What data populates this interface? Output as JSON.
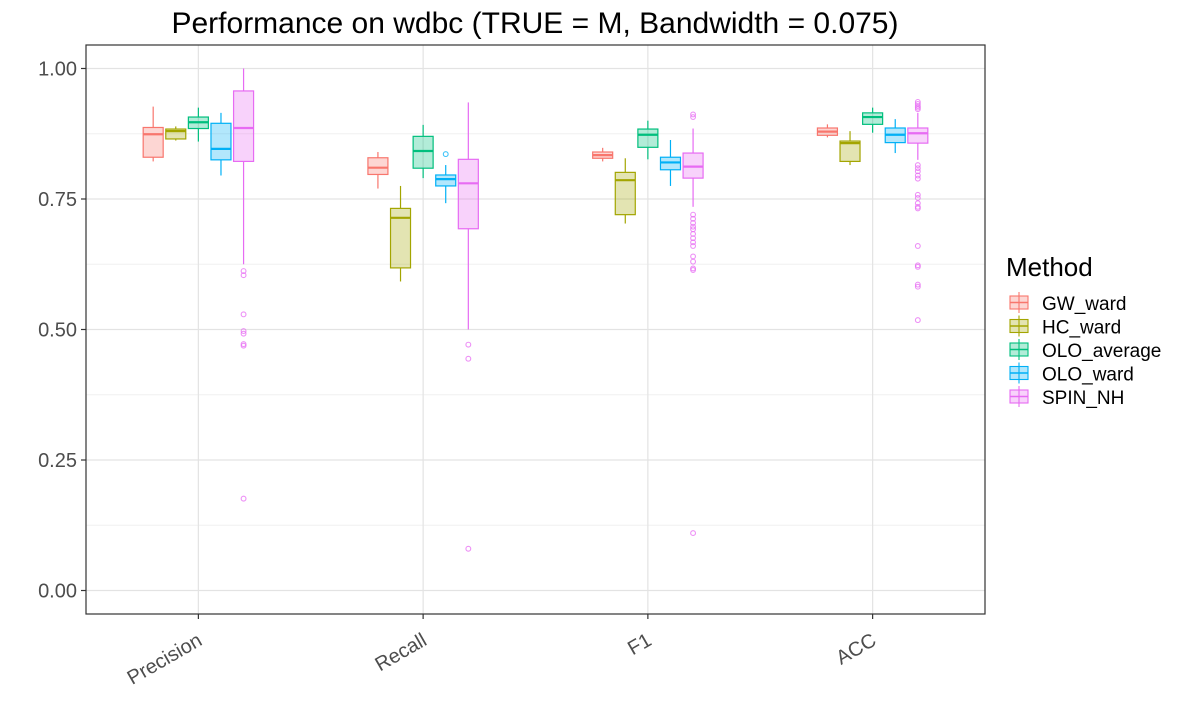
{
  "chart_data": {
    "type": "boxplot",
    "title": "Performance on wdbc (TRUE = M, Bandwidth = 0.075)",
    "xlabel": "",
    "ylabel": "",
    "categories": [
      "Precision",
      "Recall",
      "F1",
      "ACC"
    ],
    "ylim": [
      -0.045,
      1.045
    ],
    "yticks": [
      0.0,
      0.25,
      0.5,
      0.75,
      1.0
    ],
    "ytick_labels": [
      "0.00",
      "0.25",
      "0.50",
      "0.75",
      "1.00"
    ],
    "grid": true,
    "legend": {
      "title": "Method",
      "position": "right"
    },
    "series": [
      {
        "name": "GW_ward",
        "color": "#F8766D",
        "boxes": [
          {
            "category": "Precision",
            "whisker_low": 0.822,
            "q1": 0.83,
            "median": 0.874,
            "q3": 0.887,
            "whisker_high": 0.927,
            "outliers": []
          },
          {
            "category": "Recall",
            "whisker_low": 0.77,
            "q1": 0.797,
            "median": 0.81,
            "q3": 0.829,
            "whisker_high": 0.84,
            "outliers": []
          },
          {
            "category": "F1",
            "whisker_low": 0.822,
            "q1": 0.828,
            "median": 0.834,
            "q3": 0.84,
            "whisker_high": 0.848,
            "outliers": []
          },
          {
            "category": "ACC",
            "whisker_low": 0.868,
            "q1": 0.872,
            "median": 0.879,
            "q3": 0.886,
            "whisker_high": 0.893,
            "outliers": []
          }
        ]
      },
      {
        "name": "HC_ward",
        "color": "#A3A500",
        "boxes": [
          {
            "category": "Precision",
            "whisker_low": 0.862,
            "q1": 0.865,
            "median": 0.88,
            "q3": 0.884,
            "whisker_high": 0.889,
            "outliers": []
          },
          {
            "category": "Recall",
            "whisker_low": 0.592,
            "q1": 0.618,
            "median": 0.714,
            "q3": 0.732,
            "whisker_high": 0.775,
            "outliers": []
          },
          {
            "category": "F1",
            "whisker_low": 0.703,
            "q1": 0.72,
            "median": 0.786,
            "q3": 0.801,
            "whisker_high": 0.828,
            "outliers": []
          },
          {
            "category": "ACC",
            "whisker_low": 0.815,
            "q1": 0.822,
            "median": 0.857,
            "q3": 0.861,
            "whisker_high": 0.88,
            "outliers": []
          }
        ]
      },
      {
        "name": "OLO_average",
        "color": "#00BF7D",
        "boxes": [
          {
            "category": "Precision",
            "whisker_low": 0.86,
            "q1": 0.885,
            "median": 0.897,
            "q3": 0.907,
            "whisker_high": 0.925,
            "outliers": []
          },
          {
            "category": "Recall",
            "whisker_low": 0.79,
            "q1": 0.809,
            "median": 0.842,
            "q3": 0.87,
            "whisker_high": 0.892,
            "outliers": []
          },
          {
            "category": "F1",
            "whisker_low": 0.826,
            "q1": 0.849,
            "median": 0.873,
            "q3": 0.884,
            "whisker_high": 0.9,
            "outliers": []
          },
          {
            "category": "ACC",
            "whisker_low": 0.877,
            "q1": 0.893,
            "median": 0.907,
            "q3": 0.915,
            "whisker_high": 0.925,
            "outliers": []
          }
        ]
      },
      {
        "name": "OLO_ward",
        "color": "#00B0F6",
        "boxes": [
          {
            "category": "Precision",
            "whisker_low": 0.795,
            "q1": 0.825,
            "median": 0.846,
            "q3": 0.895,
            "whisker_high": 0.915,
            "outliers": []
          },
          {
            "category": "Recall",
            "whisker_low": 0.742,
            "q1": 0.775,
            "median": 0.788,
            "q3": 0.796,
            "whisker_high": 0.815,
            "outliers": [
              0.836
            ]
          },
          {
            "category": "F1",
            "whisker_low": 0.775,
            "q1": 0.806,
            "median": 0.82,
            "q3": 0.83,
            "whisker_high": 0.863,
            "outliers": []
          },
          {
            "category": "ACC",
            "whisker_low": 0.838,
            "q1": 0.858,
            "median": 0.873,
            "q3": 0.886,
            "whisker_high": 0.903,
            "outliers": []
          }
        ]
      },
      {
        "name": "SPIN_NH",
        "color": "#E76BF3",
        "boxes": [
          {
            "category": "Precision",
            "whisker_low": 0.625,
            "q1": 0.822,
            "median": 0.886,
            "q3": 0.957,
            "whisker_high": 1.0,
            "outliers": [
              0.612,
              0.604,
              0.529,
              0.497,
              0.492,
              0.472,
              0.469,
              0.176
            ]
          },
          {
            "category": "Recall",
            "whisker_low": 0.5,
            "q1": 0.693,
            "median": 0.78,
            "q3": 0.826,
            "whisker_high": 0.935,
            "outliers": [
              0.471,
              0.444,
              0.08
            ]
          },
          {
            "category": "F1",
            "whisker_low": 0.735,
            "q1": 0.79,
            "median": 0.812,
            "q3": 0.838,
            "whisker_high": 0.885,
            "outliers": [
              0.912,
              0.907,
              0.72,
              0.712,
              0.704,
              0.697,
              0.692,
              0.683,
              0.675,
              0.667,
              0.66,
              0.64,
              0.63,
              0.617,
              0.614,
              0.11
            ]
          },
          {
            "category": "ACC",
            "whisker_low": 0.825,
            "q1": 0.857,
            "median": 0.876,
            "q3": 0.886,
            "whisker_high": 0.915,
            "outliers": [
              0.936,
              0.932,
              0.928,
              0.925,
              0.922,
              0.815,
              0.809,
              0.803,
              0.795,
              0.789,
              0.758,
              0.752,
              0.742,
              0.735,
              0.732,
              0.66,
              0.623,
              0.62,
              0.586,
              0.582,
              0.518
            ]
          }
        ]
      }
    ]
  }
}
